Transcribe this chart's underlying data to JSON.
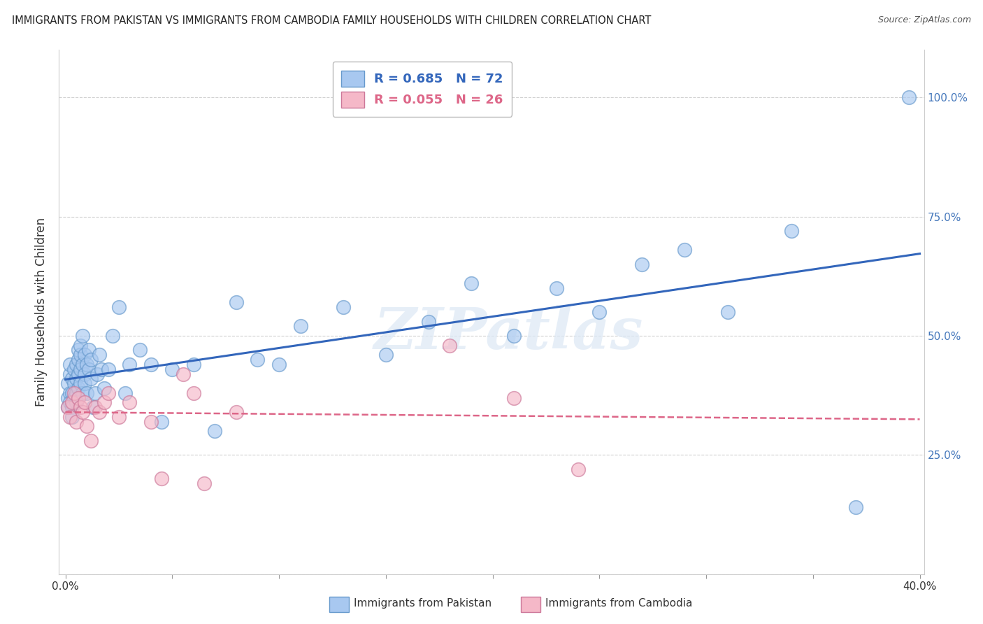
{
  "title": "IMMIGRANTS FROM PAKISTAN VS IMMIGRANTS FROM CAMBODIA FAMILY HOUSEHOLDS WITH CHILDREN CORRELATION CHART",
  "source": "Source: ZipAtlas.com",
  "ylabel": "Family Households with Children",
  "xlim": [
    0.0,
    0.4
  ],
  "ylim": [
    0.0,
    1.1
  ],
  "pakistan_color": "#a8c8f0",
  "pakistan_edge": "#6699cc",
  "cambodia_color": "#f5b8c8",
  "cambodia_edge": "#cc7799",
  "pakistan_line_color": "#3366bb",
  "cambodia_line_color": "#dd6688",
  "R_pakistan": 0.685,
  "N_pakistan": 72,
  "R_cambodia": 0.055,
  "N_cambodia": 26,
  "pakistan_x": [
    0.001,
    0.001,
    0.001,
    0.002,
    0.002,
    0.002,
    0.002,
    0.003,
    0.003,
    0.003,
    0.003,
    0.004,
    0.004,
    0.004,
    0.005,
    0.005,
    0.005,
    0.005,
    0.006,
    0.006,
    0.006,
    0.006,
    0.007,
    0.007,
    0.007,
    0.007,
    0.008,
    0.008,
    0.008,
    0.009,
    0.009,
    0.009,
    0.01,
    0.01,
    0.011,
    0.011,
    0.012,
    0.012,
    0.013,
    0.014,
    0.015,
    0.016,
    0.017,
    0.018,
    0.02,
    0.022,
    0.025,
    0.028,
    0.03,
    0.035,
    0.04,
    0.045,
    0.05,
    0.06,
    0.07,
    0.08,
    0.09,
    0.1,
    0.11,
    0.13,
    0.15,
    0.17,
    0.19,
    0.21,
    0.23,
    0.25,
    0.27,
    0.29,
    0.31,
    0.34,
    0.37,
    0.395
  ],
  "pakistan_y": [
    0.35,
    0.37,
    0.4,
    0.38,
    0.36,
    0.42,
    0.44,
    0.38,
    0.41,
    0.35,
    0.33,
    0.4,
    0.43,
    0.37,
    0.41,
    0.38,
    0.44,
    0.36,
    0.42,
    0.45,
    0.39,
    0.47,
    0.43,
    0.4,
    0.46,
    0.48,
    0.44,
    0.38,
    0.5,
    0.42,
    0.46,
    0.4,
    0.38,
    0.44,
    0.47,
    0.43,
    0.45,
    0.41,
    0.35,
    0.38,
    0.42,
    0.46,
    0.43,
    0.39,
    0.43,
    0.5,
    0.56,
    0.38,
    0.44,
    0.47,
    0.44,
    0.32,
    0.43,
    0.44,
    0.3,
    0.57,
    0.45,
    0.44,
    0.52,
    0.56,
    0.46,
    0.53,
    0.61,
    0.5,
    0.6,
    0.55,
    0.65,
    0.68,
    0.55,
    0.72,
    0.14,
    1.0
  ],
  "cambodia_x": [
    0.001,
    0.002,
    0.003,
    0.004,
    0.005,
    0.006,
    0.007,
    0.008,
    0.009,
    0.01,
    0.012,
    0.014,
    0.016,
    0.018,
    0.02,
    0.025,
    0.03,
    0.04,
    0.045,
    0.055,
    0.06,
    0.065,
    0.08,
    0.18,
    0.21,
    0.24
  ],
  "cambodia_y": [
    0.35,
    0.33,
    0.36,
    0.38,
    0.32,
    0.37,
    0.35,
    0.34,
    0.36,
    0.31,
    0.28,
    0.35,
    0.34,
    0.36,
    0.38,
    0.33,
    0.36,
    0.32,
    0.2,
    0.42,
    0.38,
    0.19,
    0.34,
    0.48,
    0.37,
    0.22
  ],
  "watermark_text": "ZIPatlas",
  "background_color": "#ffffff",
  "grid_color": "#cccccc",
  "right_ytick_color": "#4477bb"
}
